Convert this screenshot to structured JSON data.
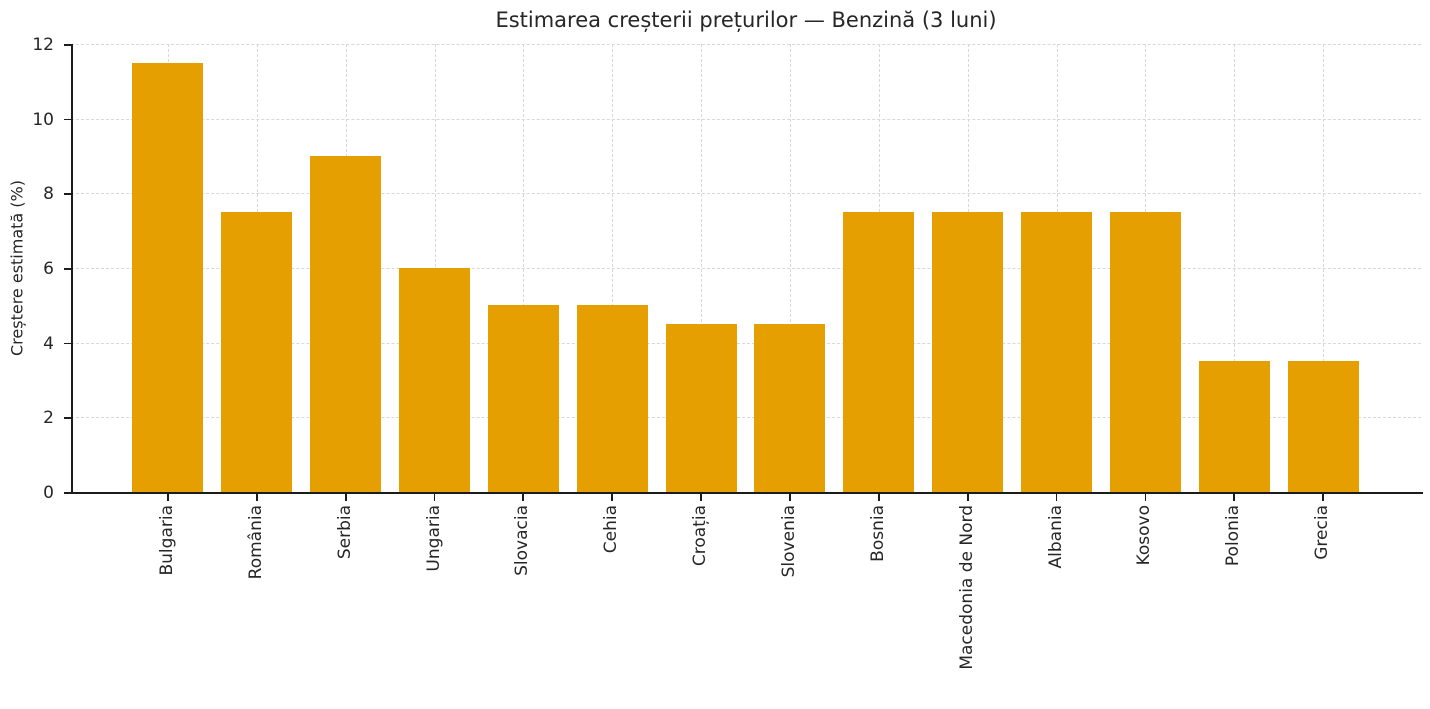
{
  "chart_data": {
    "type": "bar",
    "title": "Estimarea creșterii prețurilor — Benzină (3 luni)",
    "xlabel": "",
    "ylabel": "Creștere estimată (%)",
    "categories": [
      "Bulgaria",
      "România",
      "Serbia",
      "Ungaria",
      "Slovacia",
      "Cehia",
      "Croația",
      "Slovenia",
      "Bosnia",
      "Macedonia de Nord",
      "Albania",
      "Kosovo",
      "Polonia",
      "Grecia"
    ],
    "values": [
      11.5,
      7.5,
      9.0,
      6.0,
      5.0,
      5.0,
      4.5,
      4.5,
      7.5,
      7.5,
      7.5,
      7.5,
      3.5,
      3.5
    ],
    "ylim": [
      0,
      12
    ],
    "yticks": [
      0,
      2,
      4,
      6,
      8,
      10,
      12
    ],
    "bar_color": "#E69F00",
    "grid": true,
    "grid_style": "dashed",
    "grid_color": "#d8d8d8",
    "axis_color": "#1c1c1c",
    "text_color": "#262626",
    "legend": null
  }
}
